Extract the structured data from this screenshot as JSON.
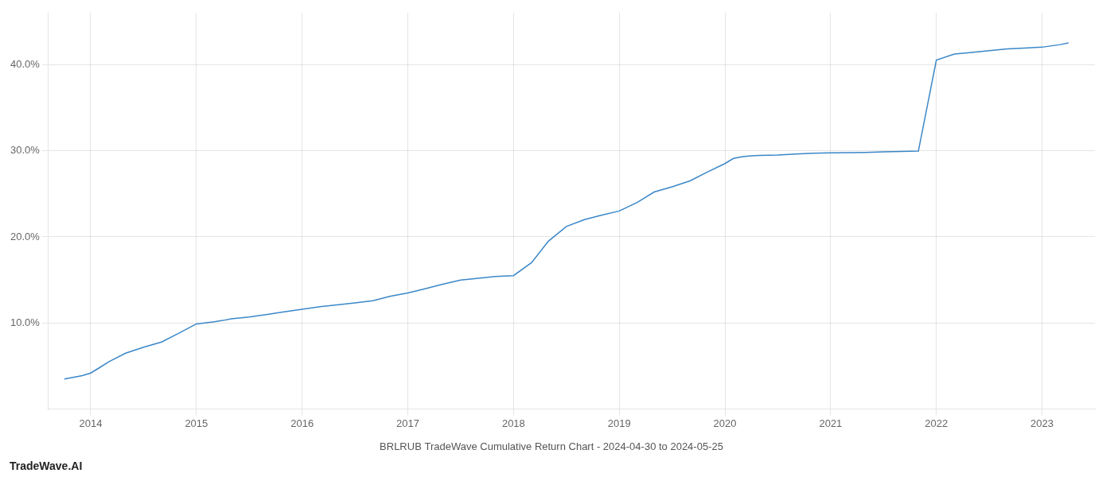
{
  "chart_data": {
    "type": "line",
    "title": "BRLRUB TradeWave Cumulative Return Chart - 2024-04-30 to 2024-05-25",
    "annotations": [
      "TradeWave.AI"
    ],
    "x": [
      2013.75,
      2013.83,
      2013.92,
      2014.0,
      2014.08,
      2014.17,
      2014.33,
      2014.5,
      2014.67,
      2014.83,
      2015.0,
      2015.17,
      2015.25,
      2015.33,
      2015.5,
      2015.67,
      2015.83,
      2016.0,
      2016.17,
      2016.33,
      2016.5,
      2016.67,
      2016.83,
      2017.0,
      2017.17,
      2017.33,
      2017.5,
      2017.67,
      2017.83,
      2018.0,
      2018.17,
      2018.33,
      2018.5,
      2018.67,
      2018.83,
      2019.0,
      2019.17,
      2019.33,
      2019.5,
      2019.67,
      2019.83,
      2020.0,
      2020.08,
      2020.17,
      2020.25,
      2020.33,
      2020.5,
      2020.67,
      2020.83,
      2021.0,
      2021.17,
      2021.33,
      2021.5,
      2021.58,
      2021.67,
      2021.75,
      2021.83,
      2022.0,
      2022.17,
      2022.33,
      2022.5,
      2022.67,
      2022.83,
      2023.0,
      2023.17,
      2023.25
    ],
    "values": [
      3.5,
      3.7,
      3.9,
      4.2,
      4.8,
      5.5,
      6.5,
      7.2,
      7.8,
      8.8,
      9.9,
      10.15,
      10.3,
      10.5,
      10.7,
      11.0,
      11.3,
      11.6,
      11.9,
      12.1,
      12.35,
      12.6,
      13.1,
      13.5,
      14.0,
      14.5,
      15.0,
      15.2,
      15.4,
      15.5,
      17.0,
      19.5,
      21.2,
      22.0,
      22.5,
      23.0,
      24.0,
      25.2,
      25.8,
      26.5,
      27.5,
      28.5,
      29.1,
      29.3,
      29.4,
      29.45,
      29.5,
      29.6,
      29.7,
      29.75,
      29.78,
      29.8,
      29.85,
      29.88,
      29.9,
      29.92,
      29.95,
      40.5,
      41.2,
      41.4,
      41.6,
      41.8,
      41.9,
      42.0,
      42.3,
      42.5
    ],
    "color": "#3a87c8",
    "xlim": [
      2013.6,
      2023.5
    ],
    "xticks": [
      2014,
      2015,
      2016,
      2017,
      2018,
      2019,
      2020,
      2021,
      2022,
      2023
    ],
    "ylim": [
      0,
      46
    ],
    "yticks": [
      {
        "value": 10.0,
        "label": "10.0%"
      },
      {
        "value": 20.0,
        "label": "20.0%"
      },
      {
        "value": 30.0,
        "label": "30.0%"
      },
      {
        "value": 40.0,
        "label": "40.0%"
      }
    ],
    "grid": true
  }
}
